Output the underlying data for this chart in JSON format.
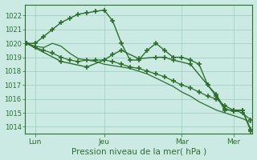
{
  "xlabel": "Pression niveau de la mer( hPa )",
  "bg_color": "#cceae4",
  "line_color": "#2d6e2d",
  "grid_color": "#99ccbb",
  "ylim": [
    1013.5,
    1022.8
  ],
  "yticks": [
    1014,
    1015,
    1016,
    1017,
    1018,
    1019,
    1020,
    1021,
    1022
  ],
  "xtick_labels": [
    "Lun",
    "Jeu",
    "Mar",
    "Mer"
  ],
  "xtick_positions": [
    1,
    9,
    18,
    24
  ],
  "n_points": 27,
  "line1": [
    1020.0,
    1020.0,
    1020.5,
    1021.0,
    1021.5,
    1021.8,
    1022.1,
    1022.2,
    1022.3,
    1022.4,
    1021.6,
    1020.0,
    1018.8,
    1018.8,
    1019.5,
    1020.0,
    1019.5,
    1019.0,
    1019.0,
    1018.8,
    1018.5,
    1017.0,
    1016.2,
    1015.2,
    1015.2,
    1015.2,
    1013.8
  ],
  "line2": [
    1020.0,
    1019.7,
    1019.5,
    1019.3,
    1019.0,
    1018.8,
    1018.7,
    1018.8,
    1018.8,
    1018.8,
    1018.7,
    1018.5,
    1018.3,
    1018.2,
    1018.0,
    1017.8,
    1017.6,
    1017.3,
    1017.0,
    1016.8,
    1016.5,
    1016.2,
    1016.0,
    1015.5,
    1015.2,
    1015.0,
    1014.5
  ],
  "line3": [
    1020.0,
    1019.8,
    1019.7,
    1020.0,
    1019.8,
    1019.3,
    1018.9,
    1018.8,
    1018.7,
    1018.5,
    1018.4,
    1018.3,
    1018.2,
    1018.0,
    1017.8,
    1017.5,
    1017.2,
    1016.9,
    1016.5,
    1016.2,
    1015.8,
    1015.5,
    1015.2,
    1015.0,
    1014.8,
    1014.6,
    1014.3
  ],
  "line4_x": [
    0,
    4,
    7,
    9,
    10,
    11,
    13,
    15,
    16,
    17,
    19,
    21,
    22,
    23,
    24,
    25,
    26
  ],
  "line4_y": [
    1020.0,
    1018.7,
    1018.3,
    1018.8,
    1019.2,
    1019.5,
    1018.9,
    1019.0,
    1019.0,
    1018.8,
    1018.5,
    1017.0,
    1016.3,
    1015.3,
    1015.1,
    1015.2,
    1013.7
  ]
}
